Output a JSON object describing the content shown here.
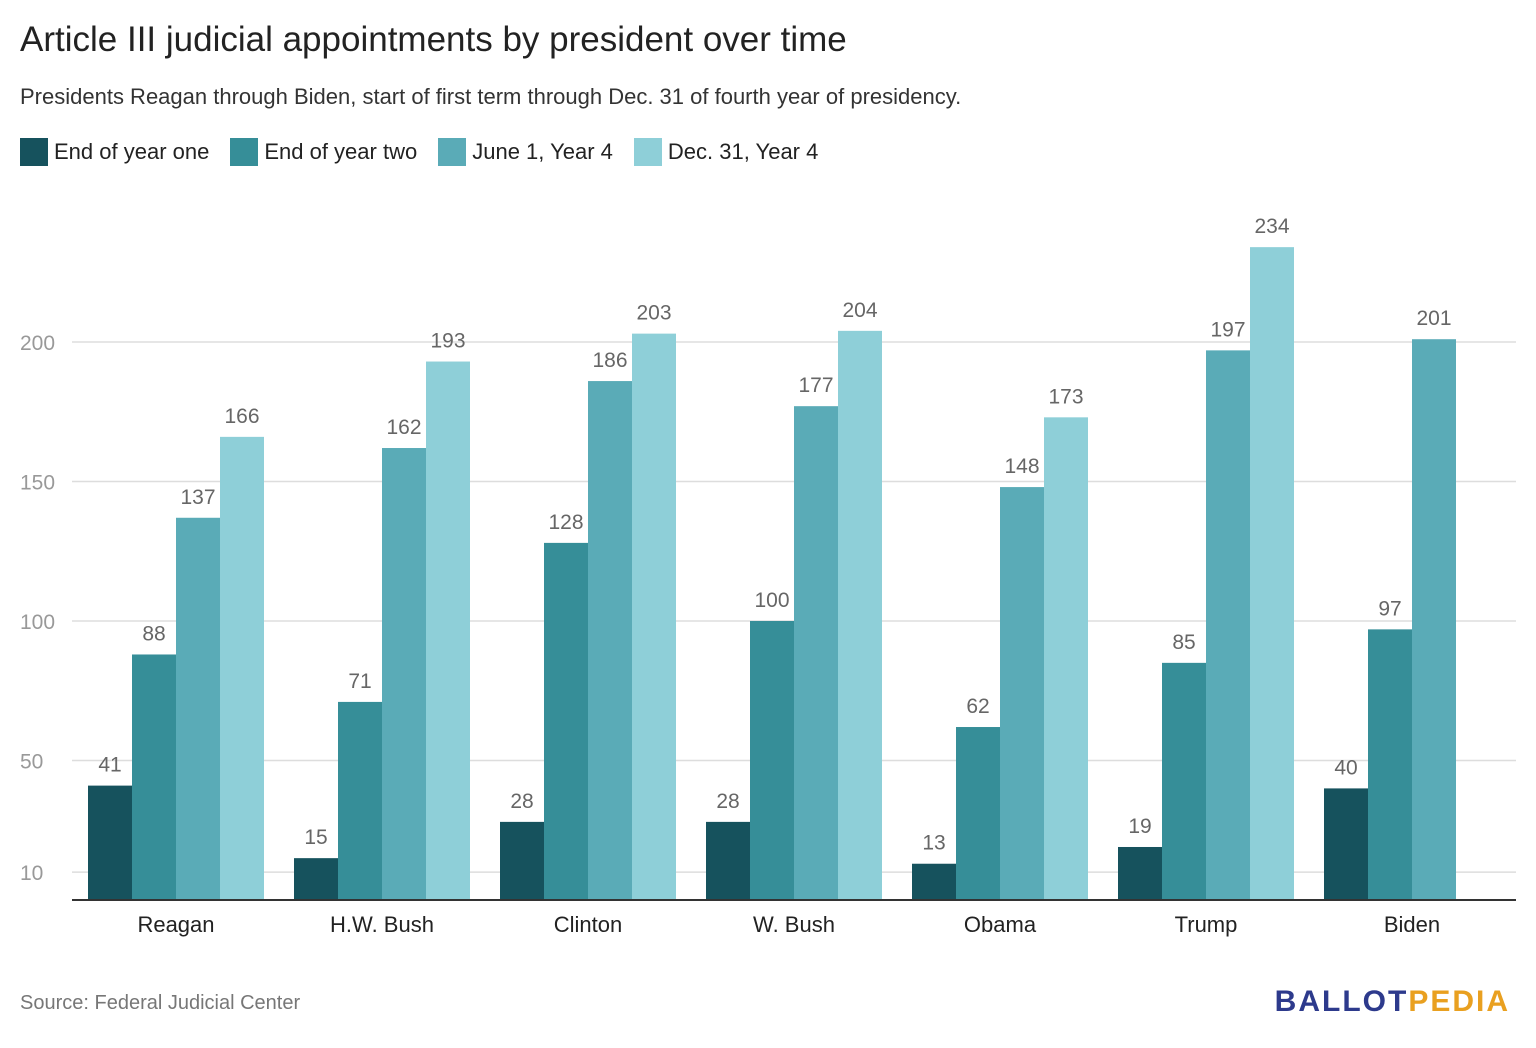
{
  "title": "Article III judicial appointments by president over time",
  "subtitle": "Presidents Reagan through Biden, start of first term through Dec. 31 of fourth year of presidency.",
  "source": "Source: Federal Judicial Center",
  "logo": {
    "part1": "BALLOT",
    "part2": "PEDIA"
  },
  "colors": {
    "series": [
      "#16525d",
      "#368e98",
      "#5aabb7",
      "#8ecfd8"
    ],
    "grid": "#dddddd",
    "axis": "#333333",
    "tick_label": "#999999",
    "category_label": "#222222",
    "value_label": "#666666"
  },
  "chart_data": {
    "type": "bar",
    "categories": [
      "Reagan",
      "H.W. Bush",
      "Clinton",
      "W. Bush",
      "Obama",
      "Trump",
      "Biden"
    ],
    "series": [
      {
        "name": "End of year one",
        "values": [
          41,
          15,
          28,
          28,
          13,
          19,
          40
        ]
      },
      {
        "name": "End of year two",
        "values": [
          88,
          71,
          128,
          100,
          62,
          85,
          97
        ]
      },
      {
        "name": "June 1, Year 4",
        "values": [
          137,
          162,
          186,
          177,
          148,
          197,
          201
        ]
      },
      {
        "name": "Dec. 31, Year 4",
        "values": [
          166,
          193,
          203,
          204,
          173,
          234,
          null
        ]
      }
    ],
    "y_ticks": [
      10,
      50,
      100,
      150,
      200
    ],
    "ylim": [
      0,
      250
    ],
    "grid": true,
    "legend_position": "top-left",
    "value_labels": true
  }
}
